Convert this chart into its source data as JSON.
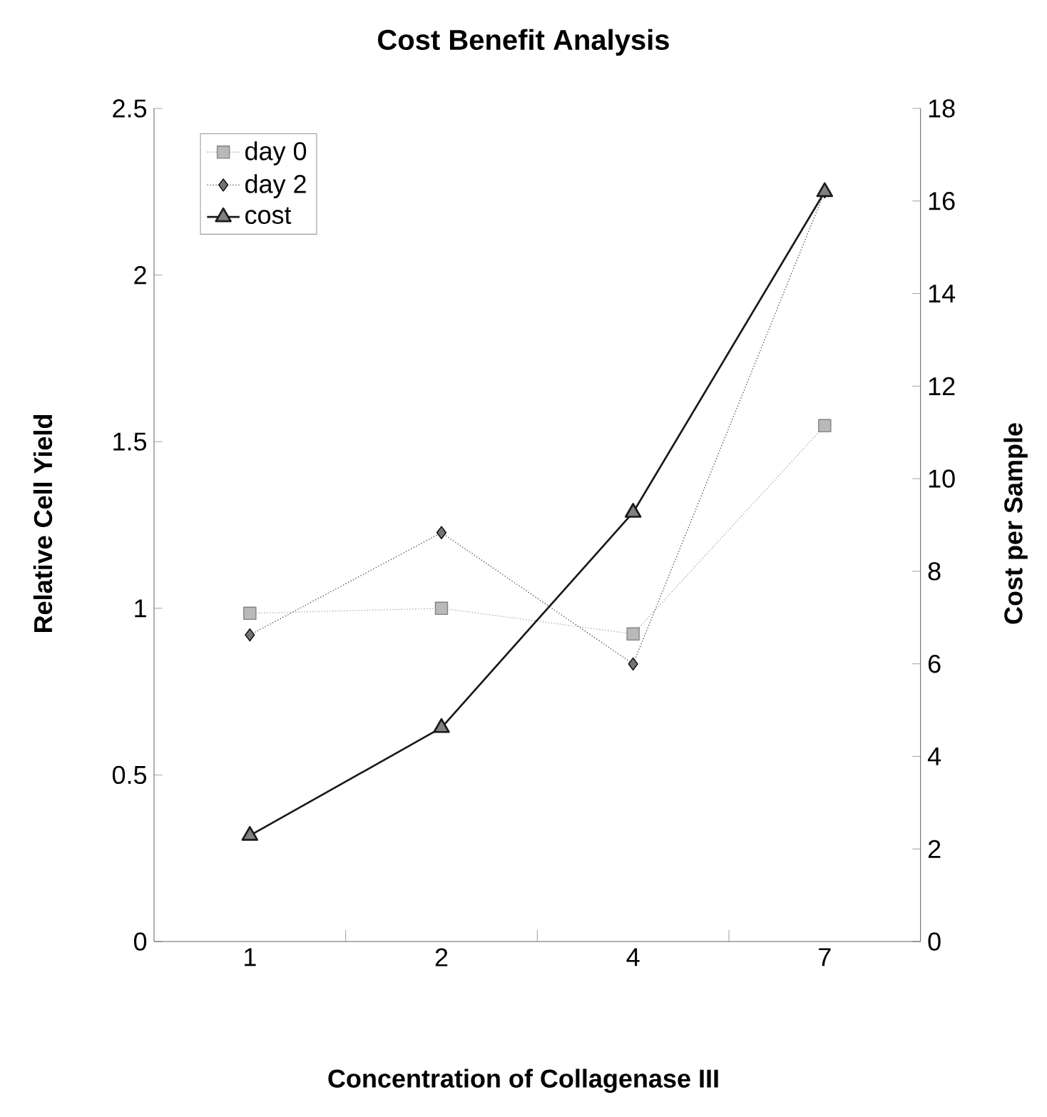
{
  "chart_data": {
    "type": "line",
    "title": "Cost Benefit Analysis",
    "xlabel": "Concentration of Collagenase III",
    "ylabel": "Relative Cell Yield",
    "y2label": "Cost per Sample",
    "categories": [
      "1",
      "2",
      "4",
      "7"
    ],
    "series": [
      {
        "name": "day 0",
        "color": "#808080",
        "values": [
          0.985,
          1.0,
          0.923,
          1.548
        ],
        "marker": "square",
        "line_style": "dotted"
      },
      {
        "name": "day 2",
        "color": "#000000",
        "values": [
          0.92,
          1.227,
          0.833,
          2.25
        ],
        "marker": "diamond",
        "line_style": "dotted"
      },
      {
        "name": "cost",
        "color": "#1a1a1a",
        "values": [
          2.29,
          4.62,
          9.27,
          16.2
        ],
        "marker": "triangle",
        "line_style": "solid",
        "axis": "y2"
      }
    ],
    "ylim": [
      0,
      2.5
    ],
    "yticks": [
      0,
      0.5,
      1,
      1.5,
      2,
      2.5
    ],
    "y2lim": [
      0,
      18
    ],
    "y2ticks": [
      0,
      2,
      4,
      6,
      8,
      10,
      12,
      14,
      16,
      18
    ],
    "legend": "top left",
    "grid": false
  }
}
